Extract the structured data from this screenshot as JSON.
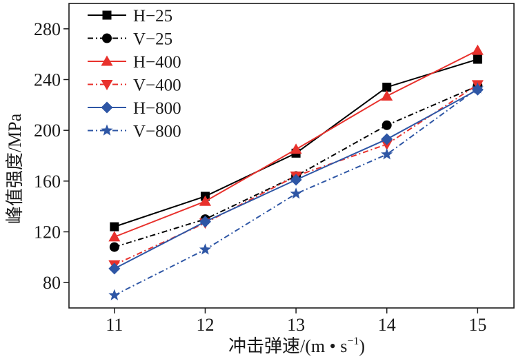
{
  "chart_data": {
    "type": "line",
    "x": [
      11,
      12,
      13,
      14,
      15
    ],
    "xlabel": "冲击弹速/(m • s",
    "xlabel_sup": "−1",
    "xlabel_close": ")",
    "ylabel": "峰值强度/MPa",
    "xlim": [
      10.5,
      15.4
    ],
    "ylim": [
      60,
      300
    ],
    "xticks": [
      "11",
      "12",
      "13",
      "14",
      "15"
    ],
    "yticks": [
      80,
      120,
      160,
      200,
      240,
      280
    ],
    "grid": false,
    "legend_position": "top-left",
    "series": [
      {
        "name": "H−25",
        "values": [
          124,
          148,
          182,
          234,
          256
        ],
        "color": "#000000",
        "dash": "solid",
        "marker": "square"
      },
      {
        "name": "V−25",
        "values": [
          108,
          130,
          164,
          204,
          235
        ],
        "color": "#000000",
        "dash": "dashdot",
        "marker": "circle"
      },
      {
        "name": "H−400",
        "values": [
          116,
          144,
          185,
          227,
          263
        ],
        "color": "#e8312c",
        "dash": "solid",
        "marker": "triangle-up"
      },
      {
        "name": "V−400",
        "values": [
          94,
          127,
          164,
          189,
          236
        ],
        "color": "#e8312c",
        "dash": "dashdot",
        "marker": "triangle-down"
      },
      {
        "name": "H−800",
        "values": [
          91,
          128,
          161,
          193,
          232
        ],
        "color": "#2e56a5",
        "dash": "solid",
        "marker": "diamond"
      },
      {
        "name": "V−800",
        "values": [
          70,
          106,
          150,
          181,
          233
        ],
        "color": "#2e56a5",
        "dash": "dashdot",
        "marker": "star"
      }
    ]
  }
}
